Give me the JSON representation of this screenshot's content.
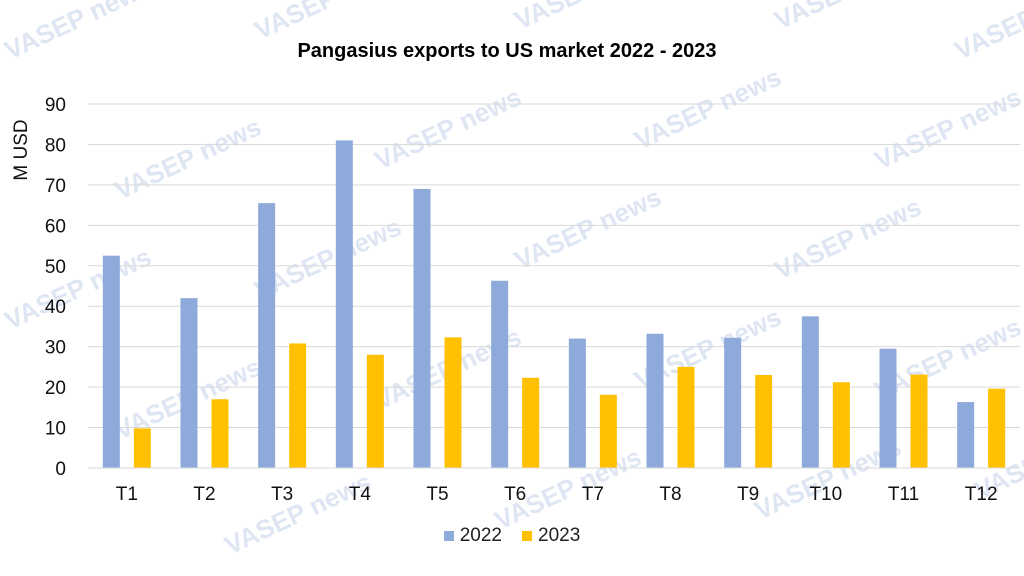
{
  "chart_data": {
    "type": "bar",
    "title": "Pangasius exports to US market 2022 - 2023",
    "ylabel": "M USD",
    "xlabel": "",
    "ylim": [
      0,
      90
    ],
    "yticks": [
      0,
      10,
      20,
      30,
      40,
      50,
      60,
      70,
      80,
      90
    ],
    "grid": true,
    "legend_position": "bottom",
    "categories": [
      "T1",
      "T2",
      "T3",
      "T4",
      "T5",
      "T6",
      "T7",
      "T8",
      "T9",
      "T10",
      "T11",
      "T12"
    ],
    "series": [
      {
        "name": "2022",
        "color": "#8eaadb",
        "values": [
          52.5,
          42,
          65.5,
          81,
          69,
          46.3,
          32,
          33.2,
          32.2,
          37.5,
          29.5,
          16.3
        ]
      },
      {
        "name": "2023",
        "color": "#ffc000",
        "values": [
          9.8,
          17,
          30.8,
          28,
          32.3,
          22.3,
          18.1,
          25,
          23,
          21.2,
          23.1,
          19.6
        ]
      }
    ]
  },
  "watermark": "VASEP news"
}
